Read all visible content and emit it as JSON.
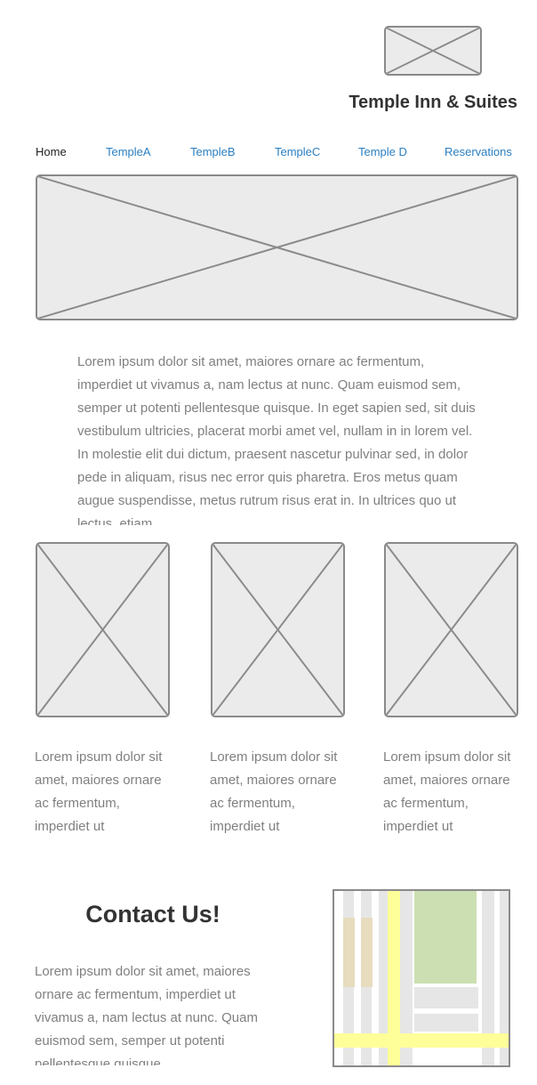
{
  "header": {
    "logo": "image-placeholder",
    "title": "Temple Inn & Suites"
  },
  "nav": {
    "items": [
      {
        "label": "Home",
        "active": true
      },
      {
        "label": "TempleA",
        "active": false
      },
      {
        "label": "TempleB",
        "active": false
      },
      {
        "label": "TempleC",
        "active": false
      },
      {
        "label": "Temple D",
        "active": false
      },
      {
        "label": "Reservations",
        "active": false
      }
    ]
  },
  "intro": {
    "text": "Lorem ipsum dolor sit amet, maiores ornare ac fermentum, imperdiet ut vivamus a, nam lectus at nunc. Quam euismod sem, semper ut potenti pellentesque quisque. In eget sapien sed, sit duis vestibulum ultricies, placerat morbi amet vel, nullam in in lorem vel. In molestie elit dui dictum, praesent nascetur pulvinar sed, in dolor pede in aliquam, risus nec error quis pharetra. Eros metus quam augue suspendisse, metus rutrum risus erat in.  In ultrices quo ut lectus, etiam"
  },
  "features": [
    {
      "text": "Lorem ipsum dolor sit amet, maiores ornare ac fermentum, imperdiet ut"
    },
    {
      "text": "Lorem ipsum dolor sit amet, maiores ornare ac fermentum, imperdiet ut"
    },
    {
      "text": "Lorem ipsum dolor sit amet, maiores ornare ac fermentum, imperdiet ut"
    }
  ],
  "contact": {
    "heading": "Contact Us!",
    "text": "Lorem ipsum dolor sit amet, maiores ornare ac fermentum, imperdiet ut vivamus a, nam lectus at nunc. Quam euismod sem, semper ut potenti pellentesque quisque."
  },
  "colors": {
    "placeholder_fill": "#ebebeb",
    "placeholder_stroke": "#8a8a8a",
    "link": "#2a7fc2",
    "text_muted": "#808080",
    "heading": "#333333"
  }
}
